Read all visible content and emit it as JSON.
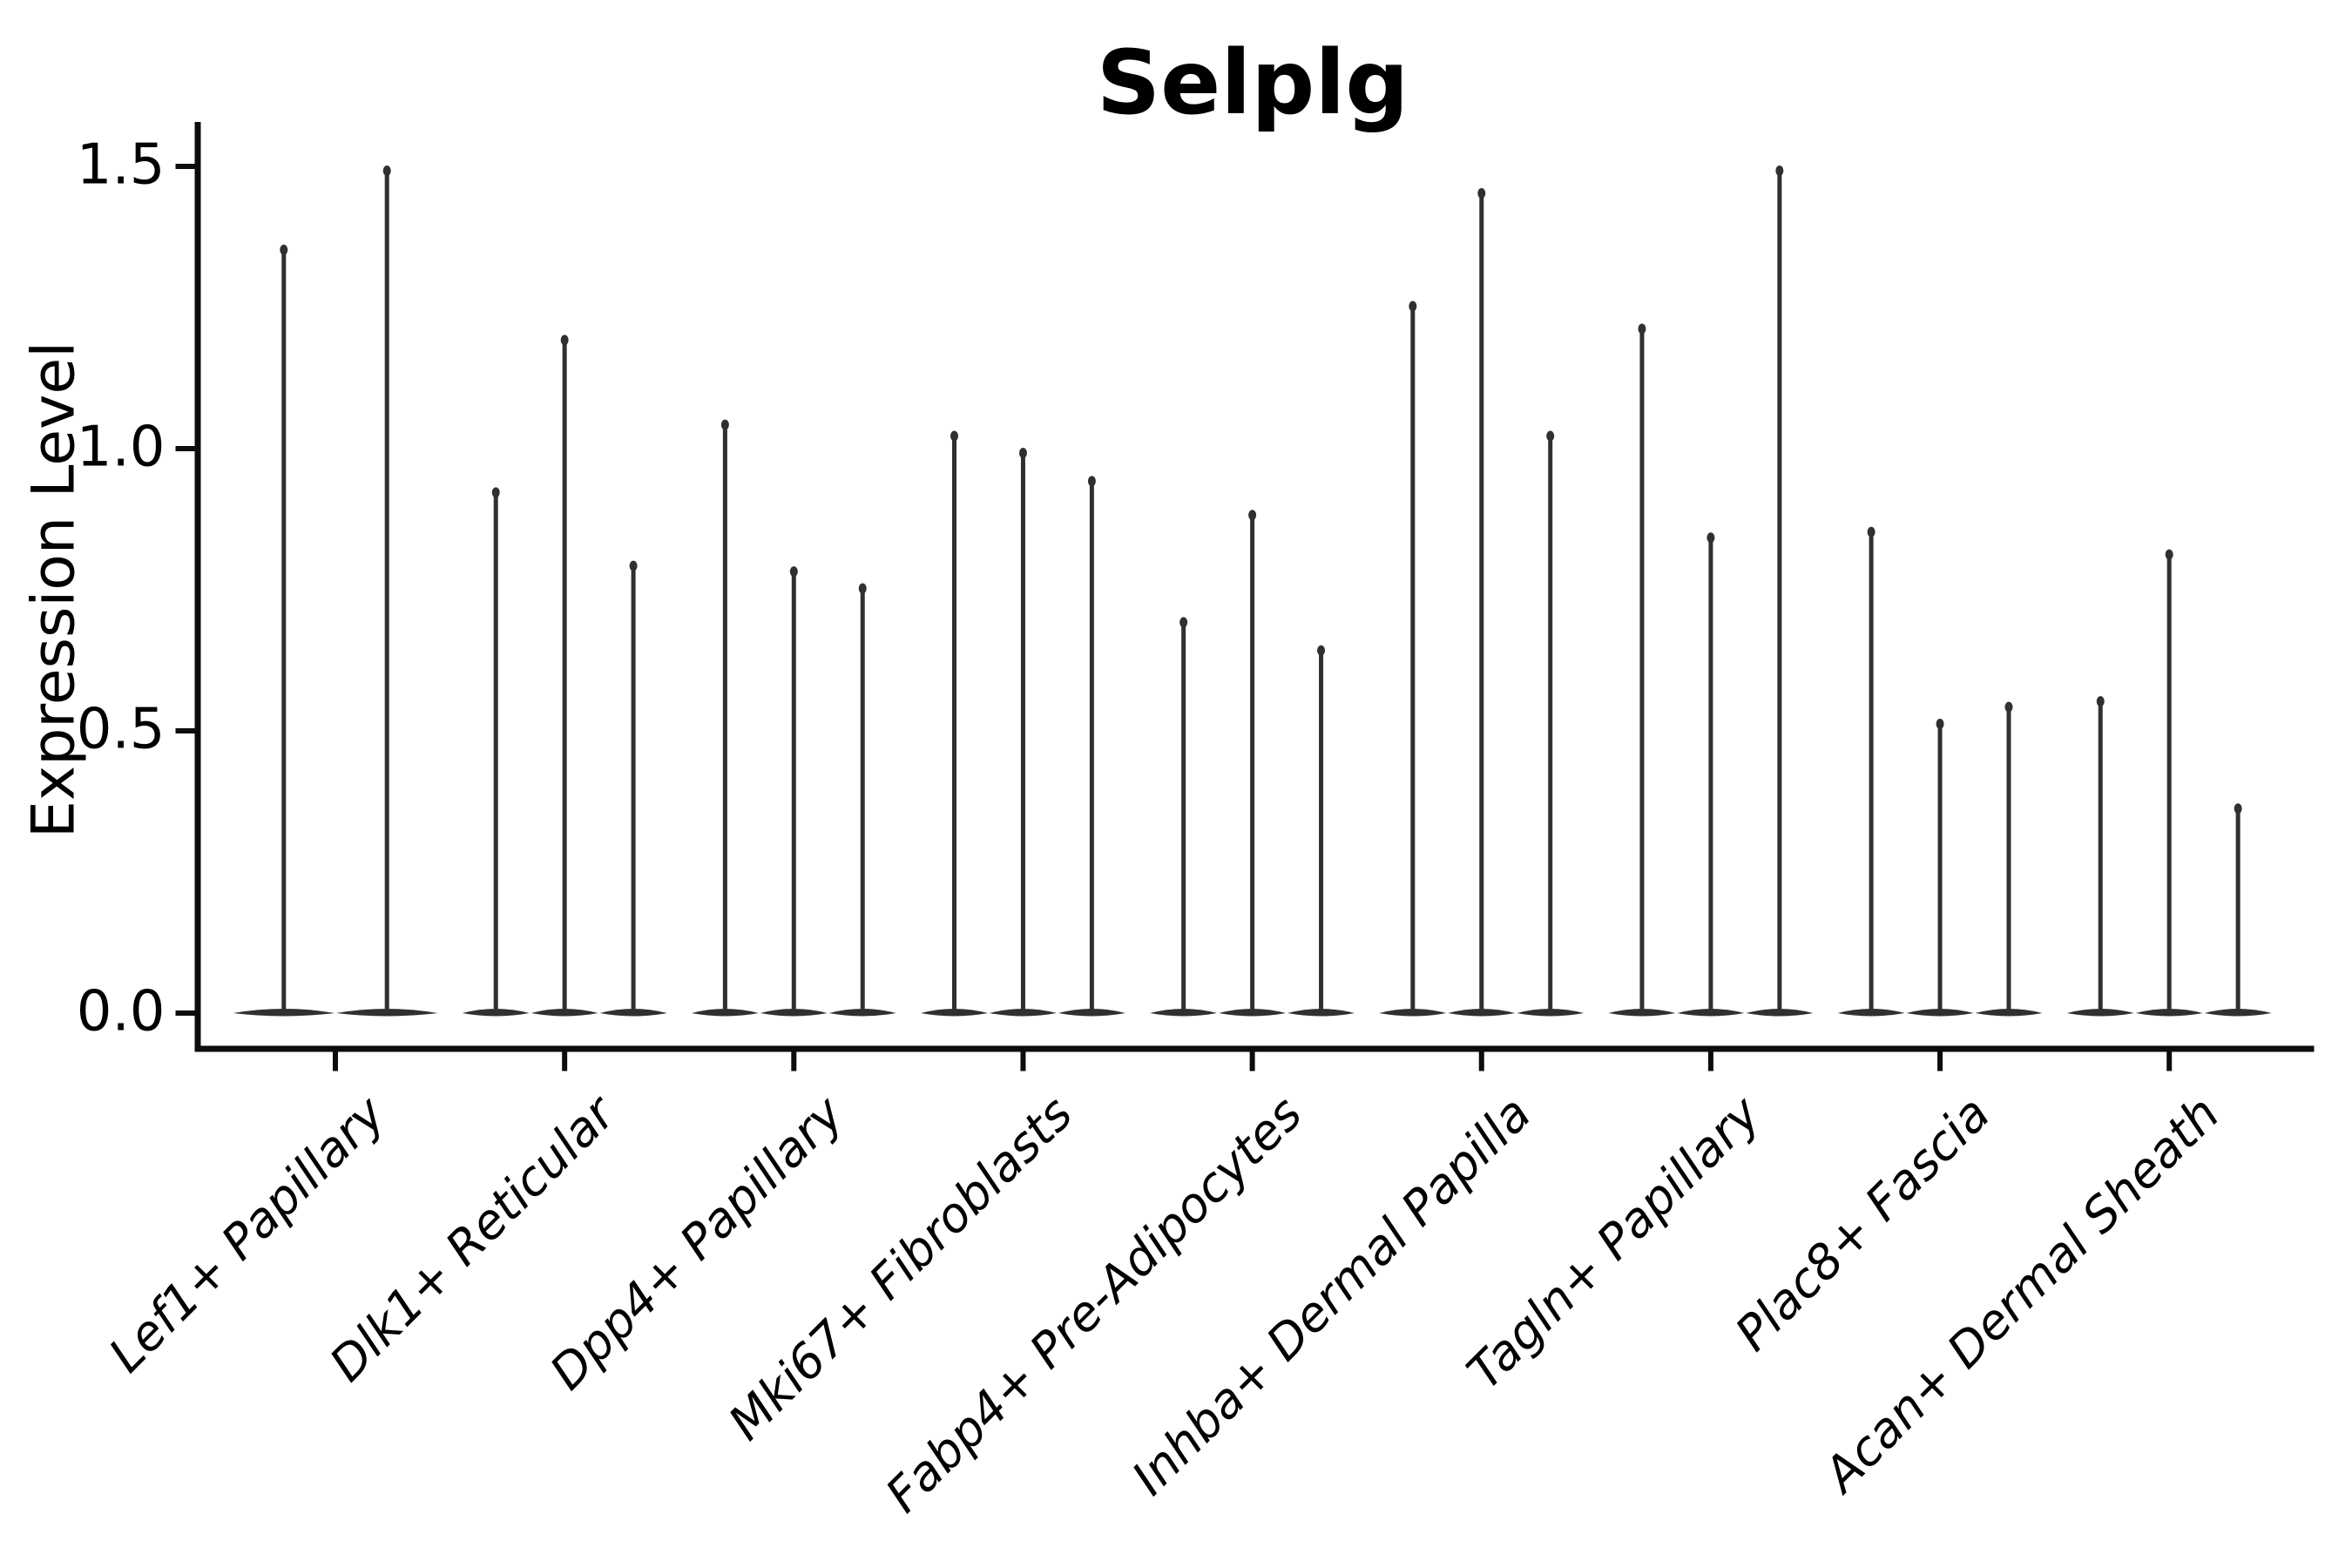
{
  "chart_data": {
    "type": "violin",
    "title": "Selplg",
    "ylabel": "Expression Level",
    "yticks": [
      0.0,
      0.5,
      1.0,
      1.5
    ],
    "ytick_labels": [
      "0.0",
      "0.5",
      "1.0",
      "1.5"
    ],
    "ylim": [
      -0.06,
      1.58
    ],
    "grid": false,
    "legend": "none",
    "x_tick_label_rotation_deg": 45,
    "x_tick_label_style": "italic",
    "baseline_value": 0.0,
    "categories": [
      "Lef1+ Papillary",
      "Dlk1+ Reticular",
      "Dpp4+ Papillary",
      "Mki67+ Fibroblasts",
      "Fabp4+ Pre-Adipocytes",
      "Inhba+ Dermal Papilla",
      "Tagln+ Papillary",
      "Plac8+ Fascia",
      "Acan+ Dermal Sheath"
    ],
    "groups": [
      {
        "category": "Lef1+ Papillary",
        "violin_maxima": [
          1.36,
          1.5
        ]
      },
      {
        "category": "Dlk1+ Reticular",
        "violin_maxima": [
          0.93,
          1.2,
          0.8
        ]
      },
      {
        "category": "Dpp4+ Papillary",
        "violin_maxima": [
          1.05,
          0.79,
          0.76
        ]
      },
      {
        "category": "Mki67+ Fibroblasts",
        "violin_maxima": [
          1.03,
          1.0,
          0.95
        ]
      },
      {
        "category": "Fabp4+ Pre-Adipocytes",
        "violin_maxima": [
          0.7,
          0.89,
          0.65
        ]
      },
      {
        "category": "Inhba+ Dermal Papilla",
        "violin_maxima": [
          1.26,
          1.46,
          1.03
        ]
      },
      {
        "category": "Tagln+ Papillary",
        "violin_maxima": [
          1.22,
          0.85,
          1.5
        ]
      },
      {
        "category": "Plac8+ Fascia",
        "violin_maxima": [
          0.86,
          0.52,
          0.55
        ]
      },
      {
        "category": "Acan+ Dermal Sheath",
        "violin_maxima": [
          0.56,
          0.82,
          0.37
        ]
      }
    ],
    "colors": {
      "violin": "#303030",
      "axis": "#0d0d0d",
      "text": "#000000",
      "background": "#ffffff"
    }
  }
}
